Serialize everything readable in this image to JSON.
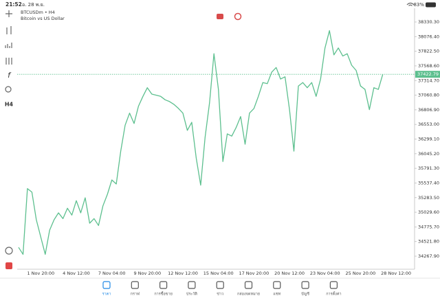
{
  "status_bar": {
    "time": "21:52",
    "date": "อ. 28 พ.ย.",
    "battery": "83%"
  },
  "header": {
    "symbol": "BTCUSDm • H4",
    "description": "Bitcoin vs US Dollar"
  },
  "toolbar": {
    "timeframe": "H4"
  },
  "chart_data": {
    "type": "line",
    "categories": [
      null,
      null,
      null,
      null,
      null,
      "1 Nov 20:00",
      null,
      null,
      null,
      null,
      null,
      null,
      null,
      "4 Nov 12:00",
      null,
      null,
      null,
      null,
      null,
      null,
      null,
      "7 Nov 04:00",
      null,
      null,
      null,
      null,
      null,
      null,
      null,
      "9 Nov 20:00",
      null,
      null,
      null,
      null,
      null,
      null,
      null,
      "12 Nov 12:00",
      null,
      null,
      null,
      null,
      null,
      null,
      null,
      "15 Nov 04:00",
      null,
      null,
      null,
      null,
      null,
      null,
      null,
      "17 Nov 20:00",
      null,
      null,
      null,
      null,
      null,
      null,
      null,
      "20 Nov 12:00",
      null,
      null,
      null,
      null,
      null,
      null,
      null,
      "23 Nov 04:00",
      null,
      null,
      null,
      null,
      null,
      null,
      null,
      "25 Nov 20:00",
      null,
      null,
      null,
      null,
      null,
      null,
      null,
      "28 Nov 12:00",
      null,
      null,
      null
    ],
    "series": [
      {
        "name": "BTCUSDm",
        "color": "#5cbf8e",
        "values": [
          34420,
          34300,
          35440,
          35380,
          34900,
          34600,
          34300,
          34720,
          34900,
          35020,
          34920,
          35100,
          34980,
          35230,
          35020,
          35280,
          34840,
          34920,
          34800,
          35140,
          35340,
          35590,
          35520,
          36090,
          36540,
          36750,
          36570,
          36870,
          37040,
          37190,
          37080,
          37060,
          37040,
          36980,
          36950,
          36900,
          36830,
          36750,
          36450,
          36590,
          35970,
          35500,
          36330,
          36930,
          37780,
          37160,
          35910,
          36390,
          36350,
          36500,
          36690,
          36210,
          36750,
          36830,
          37040,
          37280,
          37260,
          37460,
          37540,
          37340,
          37380,
          36810,
          36090,
          37220,
          37280,
          37190,
          37280,
          37040,
          37340,
          37880,
          38180,
          37760,
          37880,
          37740,
          37780,
          37580,
          37490,
          37220,
          37160,
          36810,
          37190,
          37160,
          37420,
          null,
          null,
          null,
          null,
          null,
          null
        ]
      }
    ],
    "last_price": 37422.79,
    "ylim": [
      34065.4,
      38568.6
    ],
    "yticks": [
      {
        "value": 38330.3,
        "label": "38330.30"
      },
      {
        "value": 38076.4,
        "label": "38076.40"
      },
      {
        "value": 37822.5,
        "label": "37822.50"
      },
      {
        "value": 37568.6,
        "label": "37568.60"
      },
      {
        "value": 37314.7,
        "label": "37314.70"
      },
      {
        "value": 37060.8,
        "label": "37060.80"
      },
      {
        "value": 36806.9,
        "label": "36806.90"
      },
      {
        "value": 36553.0,
        "label": "36553.00"
      },
      {
        "value": 36299.1,
        "label": "36299.10"
      },
      {
        "value": 36045.2,
        "label": "36045.20"
      },
      {
        "value": 35791.3,
        "label": "35791.30"
      },
      {
        "value": 35537.4,
        "label": "35537.40"
      },
      {
        "value": 35283.5,
        "label": "35283.50"
      },
      {
        "value": 35029.6,
        "label": "35029.60"
      },
      {
        "value": 34775.7,
        "label": "34775.70"
      },
      {
        "value": 34521.8,
        "label": "34521.80"
      },
      {
        "value": 34267.9,
        "label": "34267.90"
      }
    ],
    "grid": false
  },
  "tabs": [
    "ราคา",
    "กราฟ",
    "การซื้อขาย",
    "ประวัติ",
    "ข่าว",
    "กล่องจดหมาย",
    "แชท",
    "บัญชี",
    "การตั้งค่า"
  ],
  "active_tab": 0
}
